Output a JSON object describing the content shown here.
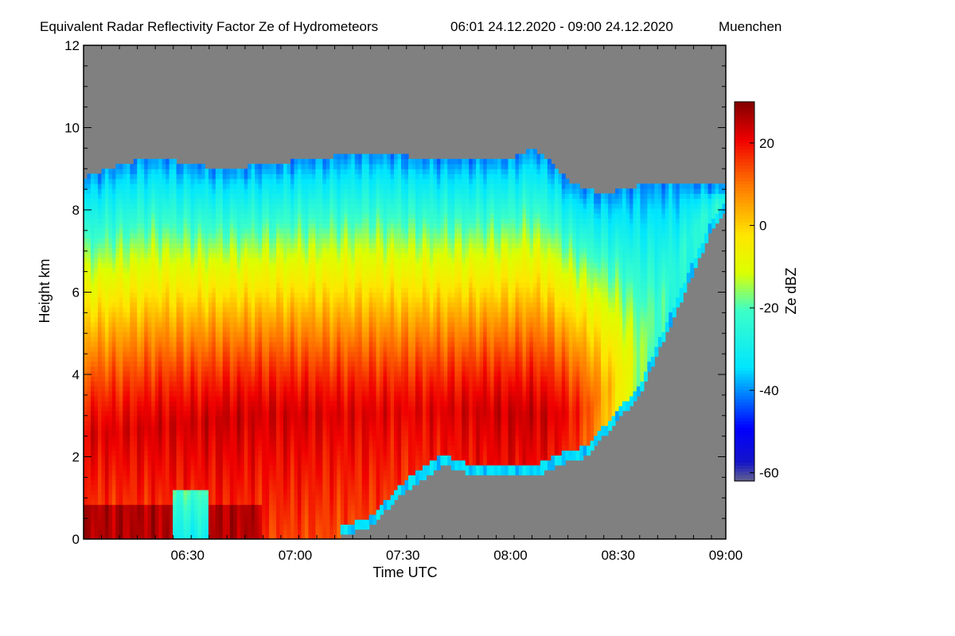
{
  "chart_data": {
    "type": "heatmap",
    "title": "Equivalent Radar Reflectivity Factor Ze of Hydrometeors",
    "time_range": "06:01 24.12.2020 - 09:00 24.12.2020",
    "location": "Muenchen",
    "xlabel": "Time UTC",
    "ylabel": "Height km",
    "x_range_minutes": [
      0,
      179
    ],
    "x_ticks": [
      {
        "minute": 29,
        "label": "06:30"
      },
      {
        "minute": 59,
        "label": "07:00"
      },
      {
        "minute": 89,
        "label": "07:30"
      },
      {
        "minute": 119,
        "label": "08:00"
      },
      {
        "minute": 149,
        "label": "08:30"
      },
      {
        "minute": 179,
        "label": "09:00"
      }
    ],
    "ylim": [
      0,
      12
    ],
    "y_ticks": [
      0,
      2,
      4,
      6,
      8,
      10,
      12
    ],
    "colorbar": {
      "label": "Ze dBZ",
      "range": [
        -62,
        30
      ],
      "ticks": [
        -60,
        -40,
        -20,
        0,
        20
      ]
    },
    "background_color": "#808080",
    "echo_profile": {
      "t_minutes": [
        0,
        10,
        20,
        30,
        40,
        50,
        60,
        70,
        80,
        90,
        100,
        110,
        120,
        125,
        130,
        135,
        140,
        145,
        150,
        155,
        160,
        165,
        170,
        175,
        179
      ],
      "top_km": [
        8.8,
        9.1,
        9.3,
        9.1,
        9.0,
        9.1,
        9.2,
        9.3,
        9.4,
        9.3,
        9.2,
        9.2,
        9.3,
        9.5,
        9.2,
        8.7,
        8.5,
        8.4,
        8.5,
        8.6,
        8.6,
        8.7,
        8.6,
        8.6,
        8.6
      ],
      "base_km": [
        0,
        0,
        0,
        0,
        0,
        0,
        0,
        0,
        0.3,
        1.2,
        1.8,
        1.5,
        1.6,
        1.5,
        1.7,
        1.9,
        2.0,
        2.5,
        3.0,
        3.5,
        4.5,
        5.5,
        6.5,
        7.5,
        8.0
      ],
      "peak_km": [
        2.5,
        2.6,
        2.7,
        2.8,
        2.9,
        3.0,
        3.0,
        3.0,
        3.0,
        3.1,
        3.1,
        3.1,
        3.0,
        3.0,
        3.0,
        3.0,
        3.1,
        3.5,
        4.0,
        4.5,
        5.5,
        6.5,
        7.5,
        8.0,
        8.2
      ],
      "peak_dbz": [
        22,
        22,
        23,
        23,
        24,
        23,
        23,
        22,
        22,
        21,
        22,
        23,
        24,
        24,
        23,
        20,
        15,
        5,
        -5,
        -15,
        -20,
        -25,
        -25,
        -25,
        -25
      ]
    }
  }
}
